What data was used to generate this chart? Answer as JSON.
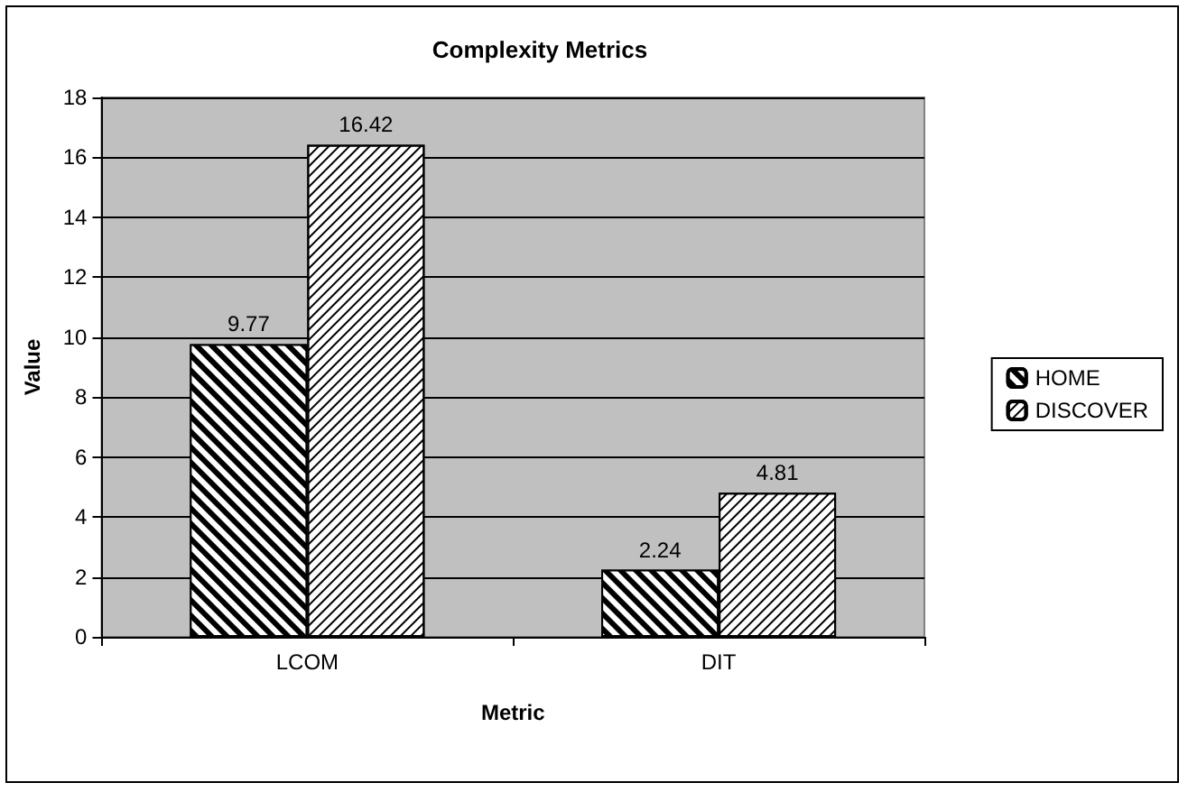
{
  "chart_data": {
    "type": "bar",
    "title": "Complexity Metrics",
    "xlabel": "Metric",
    "ylabel": "Value",
    "categories": [
      "LCOM",
      "DIT"
    ],
    "series": [
      {
        "name": "HOME",
        "color": "#000000",
        "values": [
          9.77,
          2.24
        ]
      },
      {
        "name": "DISCOVER",
        "color": "#ffffff",
        "values": [
          16.42,
          4.81
        ]
      }
    ],
    "ylim": [
      0,
      18
    ],
    "yticks": [
      0,
      2,
      4,
      6,
      8,
      10,
      12,
      14,
      16,
      18
    ],
    "grid": "y",
    "legend": "right",
    "data_labels": true
  }
}
